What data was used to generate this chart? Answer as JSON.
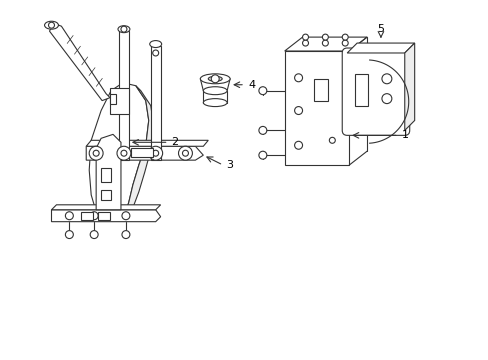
{
  "background_color": "#ffffff",
  "line_color": "#333333",
  "line_width": 0.8,
  "label_fontsize": 8,
  "figsize": [
    4.89,
    3.6
  ],
  "dpi": 100
}
